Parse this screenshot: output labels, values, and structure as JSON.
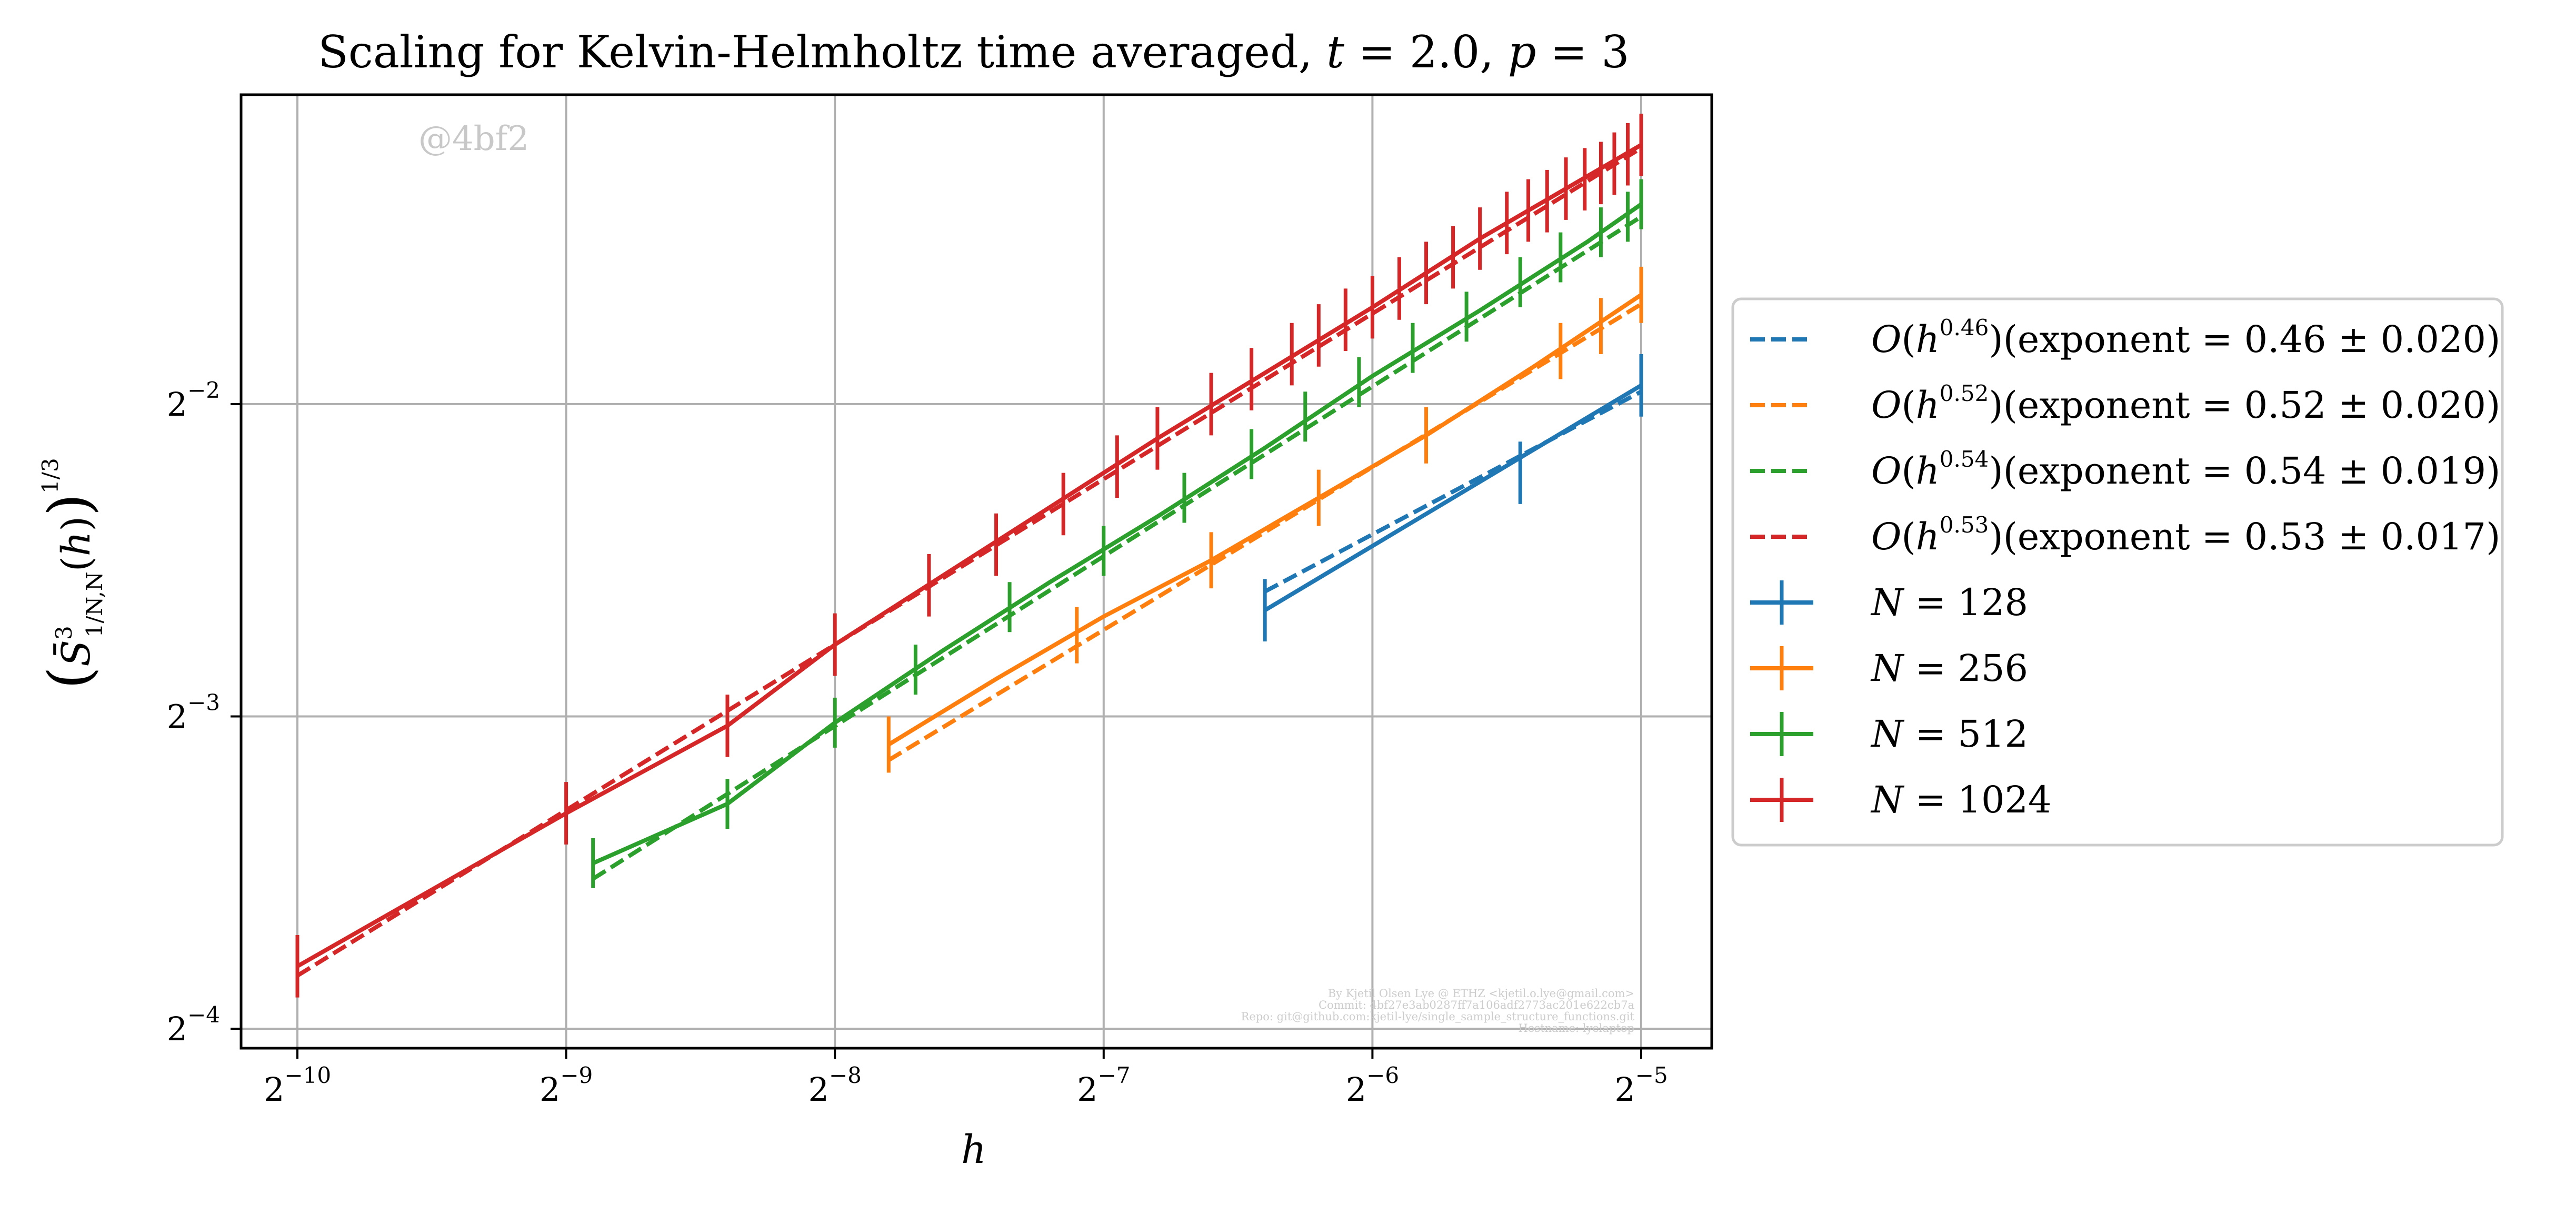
{
  "chart_data": {
    "type": "line",
    "title": "Scaling for Kelvin-Helmholtz time averaged, t = 2.0, p = 3",
    "xlabel": "h",
    "ylabel": "(S̄³₁/N,N(h))^(1/3)",
    "x_scale": "log2",
    "y_scale": "log2",
    "xlim_log2": [
      -10.2,
      -4.75
    ],
    "ylim_log2": [
      -4.07,
      -1.01
    ],
    "xticks": [
      {
        "base": "2",
        "exp": "−10",
        "value": -10
      },
      {
        "base": "2",
        "exp": "−9",
        "value": -9
      },
      {
        "base": "2",
        "exp": "−8",
        "value": -8
      },
      {
        "base": "2",
        "exp": "−7",
        "value": -7
      },
      {
        "base": "2",
        "exp": "−6",
        "value": -6
      },
      {
        "base": "2",
        "exp": "−5",
        "value": -5
      }
    ],
    "yticks": [
      {
        "base": "2",
        "exp": "−2",
        "value": -2
      },
      {
        "base": "2",
        "exp": "−3",
        "value": -3
      },
      {
        "base": "2",
        "exp": "−4",
        "value": -4
      }
    ],
    "grid": true,
    "legend_position": "outside-right",
    "watermark": "@4bf2",
    "credit_lines": [
      "By Kjetil Olsen Lye @ ETHZ <kjetil.o.lye@gmail.com>",
      "Commit: 4bf27e3ab0287ff7a106adf2773ac201e622cb7a",
      "Repo: git@github.com:kjetil-lye/single_sample_structure_functions.git",
      "Hostname: lyelaptop"
    ],
    "series": [
      {
        "name": "N = 128",
        "color": "#1f77b4",
        "x_log2": [
          -6.4,
          -5.0
        ],
        "y_log2": [
          -2.66,
          -1.94
        ],
        "errorbar_x_log2": [
          -6.4,
          -5.45,
          -5.0
        ],
        "errorbar_y_log2": [
          -2.66,
          -2.22,
          -1.94
        ],
        "errorbar_half": 0.1
      },
      {
        "name": "N = 256",
        "color": "#ff7f0e",
        "x_log2": [
          -7.8,
          -7.4,
          -7.0,
          -6.6,
          -6.2,
          -5.8,
          -5.4,
          -5.0
        ],
        "y_log2": [
          -3.09,
          -2.88,
          -2.68,
          -2.5,
          -2.3,
          -2.1,
          -1.88,
          -1.65
        ],
        "errorbar_x_log2": [
          -7.8,
          -7.1,
          -6.6,
          -6.2,
          -5.8,
          -5.3,
          -5.15,
          -5.0
        ],
        "errorbar_y_log2": [
          -3.09,
          -2.74,
          -2.5,
          -2.3,
          -2.1,
          -1.83,
          -1.75,
          -1.65
        ],
        "errorbar_half": 0.09
      },
      {
        "name": "N = 512",
        "color": "#2ca02c",
        "x_log2": [
          -8.9,
          -8.4,
          -8.0,
          -7.6,
          -7.2,
          -6.8,
          -6.4,
          -6.0,
          -5.6,
          -5.2,
          -5.0
        ],
        "y_log2": [
          -3.47,
          -3.28,
          -3.02,
          -2.79,
          -2.57,
          -2.36,
          -2.14,
          -1.91,
          -1.7,
          -1.48,
          -1.36
        ],
        "errorbar_x_log2": [
          -8.9,
          -8.4,
          -8.0,
          -7.7,
          -7.35,
          -7.0,
          -6.7,
          -6.45,
          -6.25,
          -6.05,
          -5.85,
          -5.65,
          -5.45,
          -5.3,
          -5.15,
          -5.05,
          -5.0
        ],
        "errorbar_y_log2": [
          -3.47,
          -3.28,
          -3.02,
          -2.85,
          -2.65,
          -2.47,
          -2.3,
          -2.16,
          -2.04,
          -1.93,
          -1.82,
          -1.72,
          -1.61,
          -1.53,
          -1.45,
          -1.4,
          -1.36
        ],
        "errorbar_half": 0.08
      },
      {
        "name": "N = 1024",
        "color": "#d62728",
        "x_log2": [
          -10.0,
          -9.0,
          -8.4,
          -8.0,
          -7.6,
          -7.2,
          -6.8,
          -6.4,
          -6.0,
          -5.6,
          -5.2,
          -5.0
        ],
        "y_log2": [
          -3.8,
          -3.31,
          -3.03,
          -2.77,
          -2.55,
          -2.33,
          -2.11,
          -1.9,
          -1.69,
          -1.47,
          -1.27,
          -1.17
        ],
        "errorbar_x_log2": [
          -10.0,
          -9.0,
          -8.4,
          -8.0,
          -7.65,
          -7.4,
          -7.15,
          -6.95,
          -6.8,
          -6.6,
          -6.45,
          -6.3,
          -6.2,
          -6.1,
          -6.0,
          -5.9,
          -5.8,
          -5.7,
          -5.6,
          -5.5,
          -5.42,
          -5.35,
          -5.28,
          -5.21,
          -5.15,
          -5.1,
          -5.05,
          -5.0
        ],
        "errorbar_y_log2": [
          -3.8,
          -3.31,
          -3.03,
          -2.77,
          -2.58,
          -2.45,
          -2.32,
          -2.2,
          -2.11,
          -2.0,
          -1.92,
          -1.84,
          -1.78,
          -1.73,
          -1.69,
          -1.63,
          -1.58,
          -1.53,
          -1.47,
          -1.42,
          -1.38,
          -1.35,
          -1.31,
          -1.28,
          -1.26,
          -1.23,
          -1.2,
          -1.17
        ],
        "errorbar_half": 0.1
      }
    ],
    "fits": [
      {
        "name": "O(h^0.46)(exponent = 0.46 ± 0.020)",
        "exponent_label": "0.46",
        "error_label": "0.020",
        "color": "#1f77b4",
        "x_log2": [
          -6.4,
          -5.0
        ],
        "y_log2": [
          -2.6,
          -1.96
        ]
      },
      {
        "name": "O(h^0.52)(exponent = 0.52 ± 0.020)",
        "exponent_label": "0.52",
        "error_label": "0.020",
        "color": "#ff7f0e",
        "x_log2": [
          -7.8,
          -5.0
        ],
        "y_log2": [
          -3.14,
          -1.68
        ]
      },
      {
        "name": "O(h^0.54)(exponent = 0.54 ± 0.019)",
        "exponent_label": "0.54",
        "error_label": "0.019",
        "color": "#2ca02c",
        "x_log2": [
          -8.9,
          -5.0
        ],
        "y_log2": [
          -3.52,
          -1.4
        ]
      },
      {
        "name": "O(h^0.53)(exponent = 0.53 ± 0.017)",
        "exponent_label": "0.53",
        "error_label": "0.017",
        "color": "#d62728",
        "x_log2": [
          -10.0,
          -5.0
        ],
        "y_log2": [
          -3.83,
          -1.18
        ]
      }
    ]
  }
}
